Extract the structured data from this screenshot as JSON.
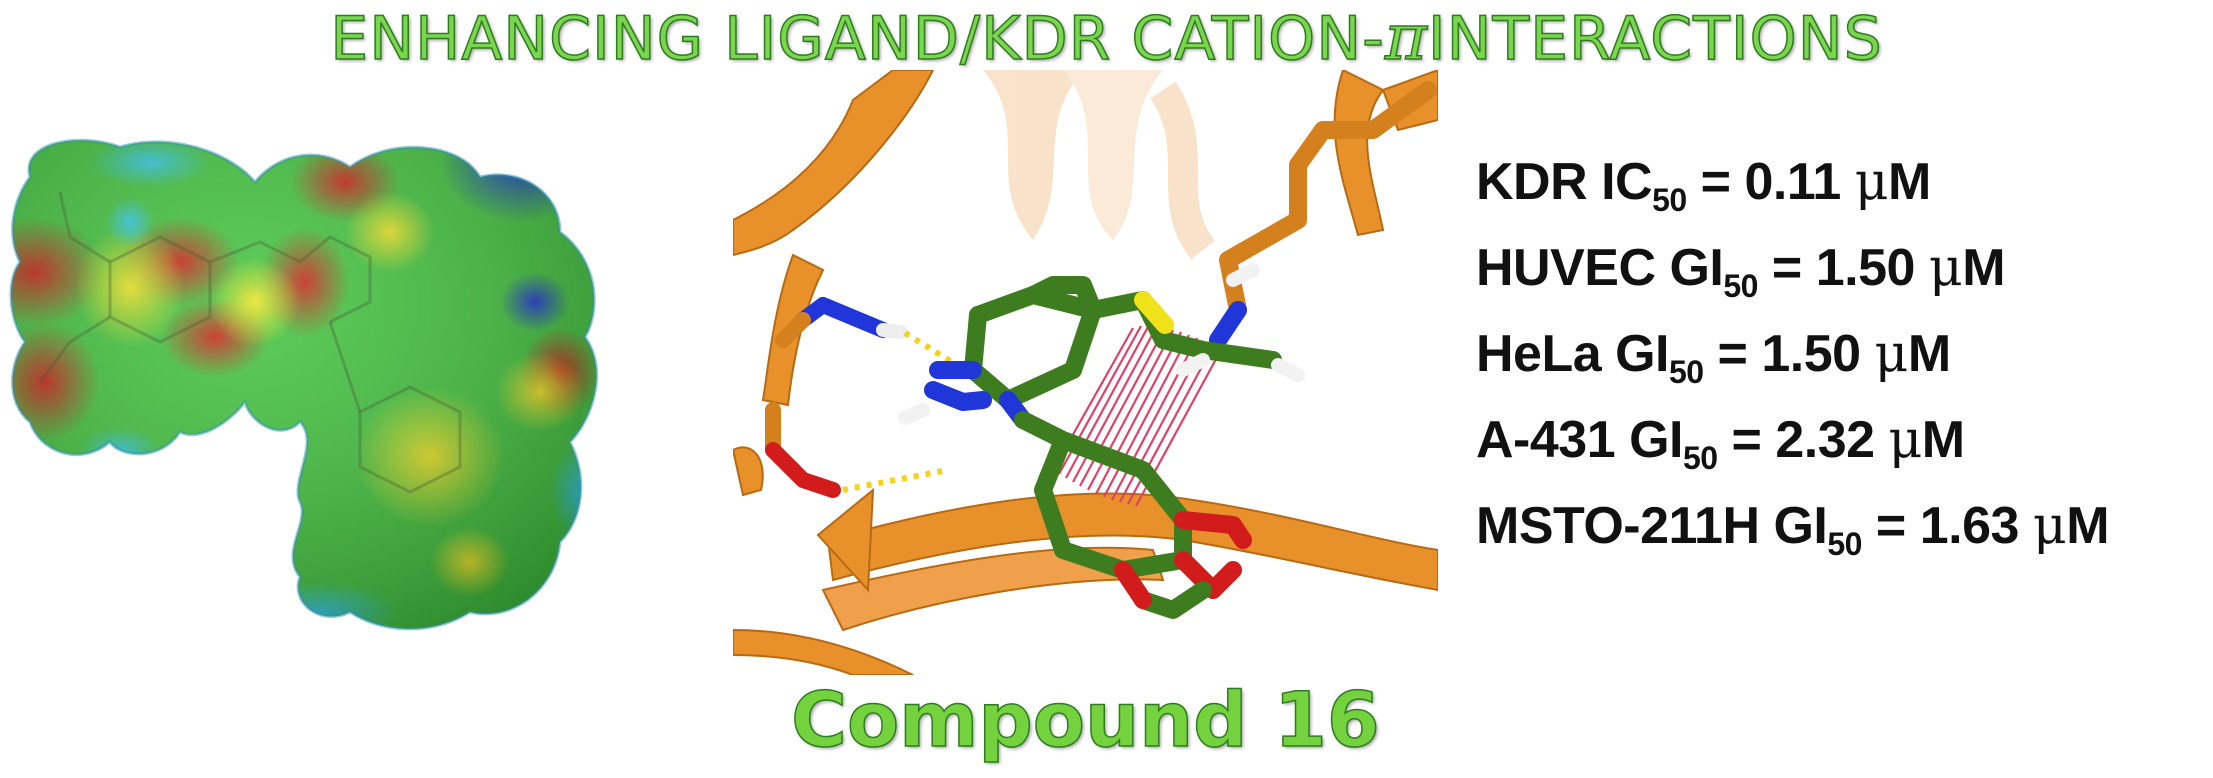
{
  "title": {
    "main": "ENHANCING LIGAND/KDR CATION-",
    "pi": "π",
    "tail": "INTERACTIONS"
  },
  "compound_label": "Compound 16",
  "activities": [
    {
      "label": "KDR IC",
      "sub": "50",
      "eq": " = 0.11 ",
      "mu": "μ",
      "unit": "M"
    },
    {
      "label": "HUVEC GI",
      "sub": "50",
      "eq": " = 1.50 ",
      "mu": "μ",
      "unit": "M"
    },
    {
      "label": "HeLa GI",
      "sub": "50",
      "eq": " = 1.50 ",
      "mu": "μ",
      "unit": "M"
    },
    {
      "label": "A-431 GI",
      "sub": "50",
      "eq": " = 2.32 ",
      "mu": "μ",
      "unit": "M"
    },
    {
      "label": "MSTO-211H GI",
      "sub": "50",
      "eq": " = 1.63 ",
      "mu": "μ",
      "unit": "M"
    }
  ],
  "colors": {
    "title_green": "#79d64e",
    "ligand_green": "#3e7d1f",
    "protein_orange": "#e8912a",
    "nitrogen_blue": "#2136d9",
    "oxygen_red": "#d21c1c",
    "sulfur_yellow": "#f0e21a",
    "hbond_yellow": "#f5d21c",
    "cation_pi_red": "#e0406a",
    "text_dark": "#111111"
  }
}
